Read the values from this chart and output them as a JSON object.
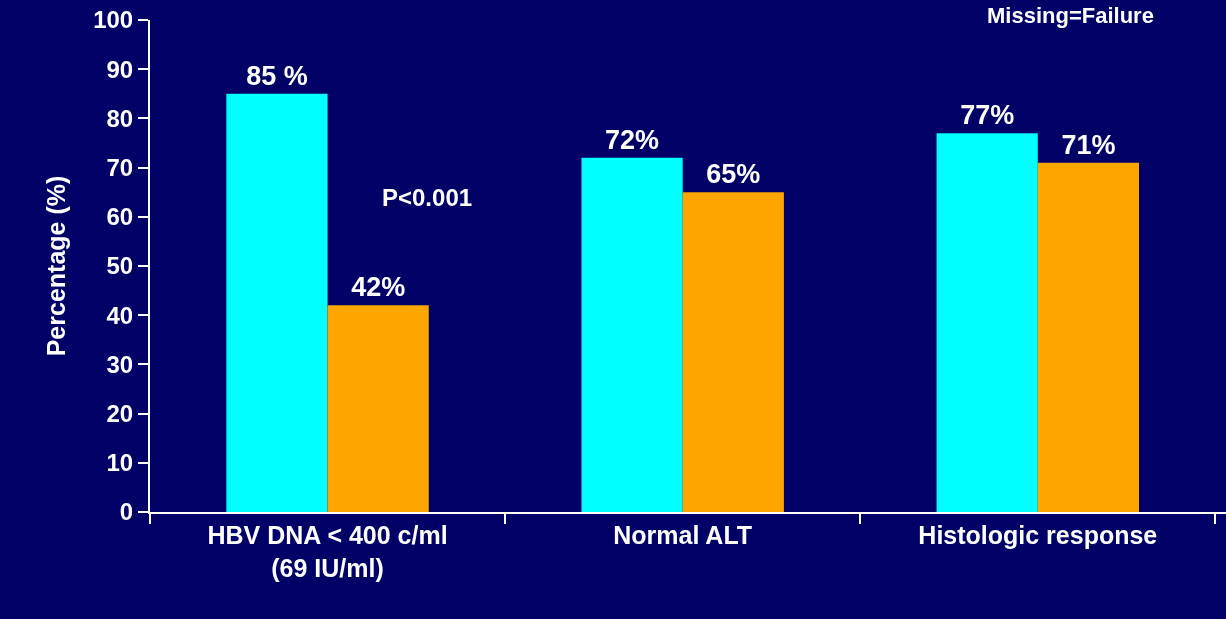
{
  "chart_data": {
    "type": "bar",
    "ylabel": "Percentage (%)",
    "categories": [
      "HBV DNA < 400 c/ml\n(69 IU/ml)",
      "Normal ALT",
      "Histologic response"
    ],
    "series": [
      {
        "color": "#00ffff",
        "values": [
          85,
          72,
          77
        ],
        "value_labels": [
          "85 %",
          "72%",
          "77%"
        ]
      },
      {
        "color": "#ffa500",
        "values": [
          42,
          65,
          71
        ],
        "value_labels": [
          "42%",
          "65%",
          "71%"
        ]
      }
    ],
    "ylim": [
      0,
      100
    ],
    "yticks": [
      0,
      10,
      20,
      30,
      40,
      50,
      60,
      70,
      80,
      90,
      100
    ],
    "grid": false,
    "annotations": [
      "Missing=Failure",
      {
        "text": "P<0.001",
        "x": "HBV DNA < 400 c/ml\n(69 IU/ml)",
        "y": 64
      }
    ]
  }
}
